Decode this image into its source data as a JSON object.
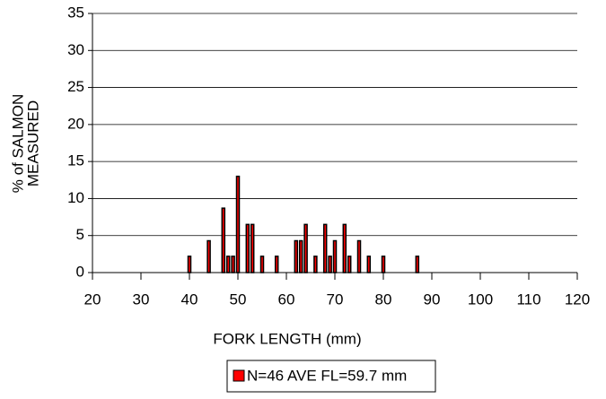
{
  "chart_data": {
    "type": "bar",
    "x": [
      40,
      44,
      47,
      48,
      49,
      50,
      52,
      53,
      55,
      58,
      62,
      63,
      64,
      66,
      68,
      69,
      70,
      72,
      73,
      75,
      77,
      80,
      87
    ],
    "series": [
      {
        "name": "N=46  AVE FL=59.7 mm",
        "color": "#ff0000",
        "values": [
          2.2,
          4.3,
          8.7,
          2.2,
          2.2,
          13,
          6.5,
          6.5,
          2.2,
          2.2,
          4.3,
          4.3,
          6.5,
          2.2,
          6.5,
          2.2,
          4.3,
          6.5,
          2.2,
          4.3,
          2.2,
          2.2,
          2.2
        ]
      }
    ],
    "xlabel": "FORK LENGTH (mm)",
    "ylabel": [
      "% of SALMON",
      "MEASURED"
    ],
    "xlim": [
      20,
      120
    ],
    "xticks": [
      20,
      30,
      40,
      50,
      60,
      70,
      80,
      90,
      100,
      110,
      120
    ],
    "ylim": [
      0,
      35
    ],
    "yticks": [
      0,
      5,
      10,
      15,
      20,
      25,
      30,
      35
    ],
    "grid": true,
    "legend": "bottom"
  }
}
